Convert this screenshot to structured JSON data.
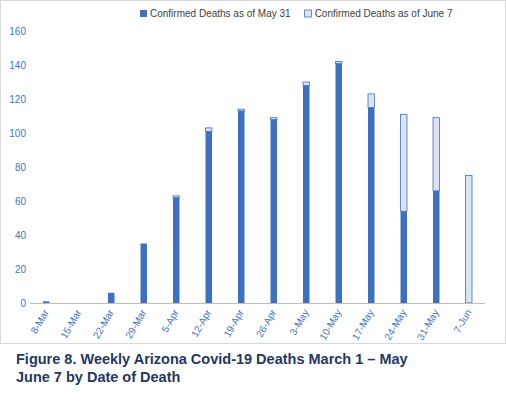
{
  "chart_data": {
    "type": "bar",
    "stacked": true,
    "title": "Figure 8. Weekly Arizona Covid-19 Deaths March 1 – May June 7 by Date of Death",
    "categories": [
      "8-Mar",
      "15-Mar",
      "22-Mar",
      "29-Mar",
      "5-Apr",
      "12-Apr",
      "19-Apr",
      "26-Apr",
      "3-May",
      "10-May",
      "17-May",
      "24-May",
      "31-May",
      "7-Jun"
    ],
    "series": [
      {
        "name": "Confirmed Deaths as of May 31",
        "color": "#3f6fc1",
        "values": [
          1,
          0,
          6,
          35,
          62,
          101,
          113,
          108,
          128,
          141,
          115,
          54,
          66,
          0
        ]
      },
      {
        "name": "Confirmed Deaths as of June 7",
        "color": "#dae3f3",
        "values": [
          0,
          0,
          0,
          0,
          1,
          2,
          1,
          1,
          2,
          1,
          8,
          57,
          43,
          75
        ]
      }
    ],
    "ylim": [
      0,
      160
    ],
    "yticks": [
      0,
      20,
      40,
      60,
      80,
      100,
      120,
      140,
      160
    ],
    "grid": false,
    "legend": "top"
  }
}
